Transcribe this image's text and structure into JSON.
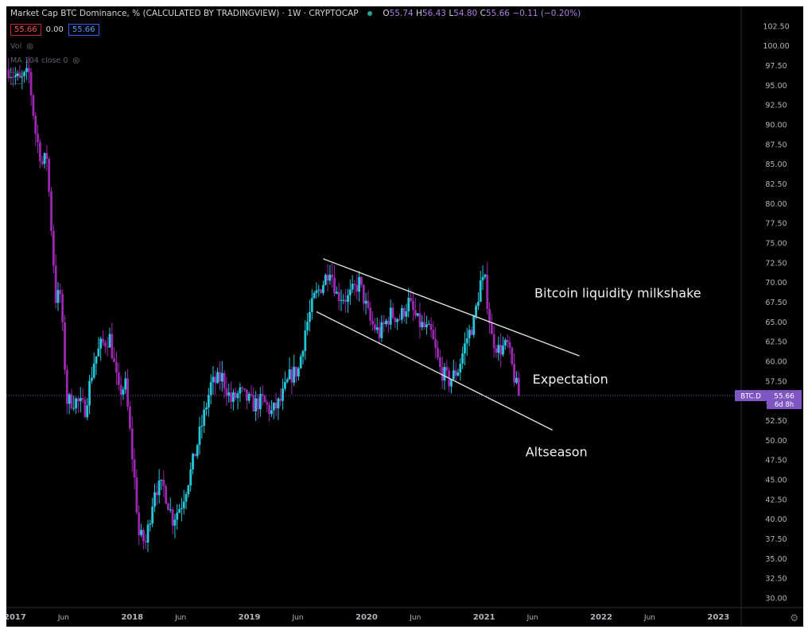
{
  "header": {
    "title": "Market Cap BTC Dominance, % (CALCULATED BY TRADINGVIEW) · 1W · CRYPTOCAP",
    "ohlc": {
      "o_label": "O",
      "o": "55.74",
      "h_label": "H",
      "h": "56.43",
      "l_label": "L",
      "l": "54.80",
      "c_label": "C",
      "c": "55.66",
      "change": "−0.11 (−0.20%)"
    },
    "badge_last": "55.66",
    "badge_zero": "0.00",
    "badge_ma": "55.66",
    "vol_label": "Vol",
    "ma_label": "MA 104 close 0"
  },
  "price_label": {
    "symbol": "BTC.D",
    "value": "55.66",
    "countdown": "6d 8h"
  },
  "colors": {
    "up": "#26c6da",
    "down": "#9c27b0",
    "line": "#e0e0e0",
    "bg": "#000000"
  },
  "icons": {
    "eye": "eye-crossed-icon",
    "collapse": "chevron-up-icon",
    "settings": "gear-icon",
    "status": "dot-icon"
  },
  "chart_data": {
    "type": "candlestick",
    "ylim": [
      28.8,
      105.0
    ],
    "y_ticks": [
      "102.50",
      "100.00",
      "97.50",
      "95.00",
      "92.50",
      "90.00",
      "87.50",
      "85.00",
      "82.50",
      "80.00",
      "77.50",
      "75.00",
      "72.50",
      "70.00",
      "67.50",
      "65.00",
      "62.50",
      "60.00",
      "57.50",
      "55.00",
      "52.50",
      "50.00",
      "47.50",
      "45.00",
      "42.50",
      "40.00",
      "37.50",
      "35.00",
      "32.50",
      "30.00"
    ],
    "x_ticks": [
      {
        "label": "2017",
        "date": "2017-01-01"
      },
      {
        "label": "Jun",
        "date": "2017-06-01"
      },
      {
        "label": "2018",
        "date": "2018-01-01"
      },
      {
        "label": "Jun",
        "date": "2018-06-01"
      },
      {
        "label": "2019",
        "date": "2019-01-01"
      },
      {
        "label": "Jun",
        "date": "2019-06-01"
      },
      {
        "label": "2020",
        "date": "2020-01-01"
      },
      {
        "label": "Jun",
        "date": "2020-06-01"
      },
      {
        "label": "2021",
        "date": "2021-01-01"
      },
      {
        "label": "Jun",
        "date": "2021-06-01"
      },
      {
        "label": "2022",
        "date": "2022-01-01"
      },
      {
        "label": "Jun",
        "date": "2022-06-01"
      },
      {
        "label": "2023",
        "date": "2023-01-01"
      }
    ],
    "x_start_date": "2016-12-05",
    "x_end_date": "2023-03-13",
    "close_path": [
      [
        "2016-12-12",
        97.0
      ],
      [
        "2017-01-16",
        95.5
      ],
      [
        "2017-02-13",
        96.5
      ],
      [
        "2017-03-06",
        89.0
      ],
      [
        "2017-03-27",
        85.0
      ],
      [
        "2017-04-10",
        86.0
      ],
      [
        "2017-05-08",
        68.0
      ],
      [
        "2017-05-22",
        68.5
      ],
      [
        "2017-06-12",
        55.0
      ],
      [
        "2017-07-10",
        55.0
      ],
      [
        "2017-08-07",
        54.0
      ],
      [
        "2017-09-04",
        60.0
      ],
      [
        "2017-09-25",
        62.0
      ],
      [
        "2017-10-23",
        63.0
      ],
      [
        "2017-11-20",
        56.0
      ],
      [
        "2017-12-11",
        57.0
      ],
      [
        "2018-01-08",
        45.0
      ],
      [
        "2018-01-22",
        38.0
      ],
      [
        "2018-02-12",
        37.0
      ],
      [
        "2018-03-12",
        44.0
      ],
      [
        "2018-04-09",
        44.0
      ],
      [
        "2018-05-07",
        40.0
      ],
      [
        "2018-06-04",
        42.0
      ],
      [
        "2018-07-02",
        46.0
      ],
      [
        "2018-08-06",
        52.0
      ],
      [
        "2018-09-03",
        57.0
      ],
      [
        "2018-10-08",
        58.0
      ],
      [
        "2018-11-05",
        55.0
      ],
      [
        "2018-12-03",
        56.0
      ],
      [
        "2019-01-14",
        54.5
      ],
      [
        "2019-02-11",
        55.0
      ],
      [
        "2019-03-11",
        53.5
      ],
      [
        "2019-04-08",
        55.0
      ],
      [
        "2019-05-06",
        58.0
      ],
      [
        "2019-06-03",
        59.0
      ],
      [
        "2019-06-24",
        64.0
      ],
      [
        "2019-07-22",
        68.0
      ],
      [
        "2019-08-19",
        70.0
      ],
      [
        "2019-09-09",
        72.0
      ],
      [
        "2019-09-30",
        68.5
      ],
      [
        "2019-11-04",
        68.0
      ],
      [
        "2019-12-09",
        70.0
      ],
      [
        "2020-01-13",
        65.0
      ],
      [
        "2020-02-10",
        63.5
      ],
      [
        "2020-03-16",
        66.0
      ],
      [
        "2020-04-13",
        65.5
      ],
      [
        "2020-05-11",
        67.5
      ],
      [
        "2020-06-08",
        65.0
      ],
      [
        "2020-07-20",
        63.5
      ],
      [
        "2020-08-17",
        59.0
      ],
      [
        "2020-09-14",
        57.5
      ],
      [
        "2020-10-12",
        59.0
      ],
      [
        "2020-11-09",
        63.0
      ],
      [
        "2020-11-30",
        65.0
      ],
      [
        "2020-12-21",
        70.0
      ],
      [
        "2021-01-04",
        70.0
      ],
      [
        "2021-01-25",
        63.0
      ],
      [
        "2021-02-15",
        61.5
      ],
      [
        "2021-03-15",
        62.0
      ],
      [
        "2021-04-05",
        58.0
      ],
      [
        "2021-04-19",
        55.66
      ]
    ],
    "annotations": [
      {
        "text": "Bitcoin liquidity milkshake",
        "date": "2021-06-07",
        "y": 68.1
      },
      {
        "text": "Expectation",
        "date": "2021-06-01",
        "y": 57.2
      },
      {
        "text": "Altseason",
        "date": "2021-05-10",
        "y": 48.0
      }
    ],
    "trend_lines": [
      {
        "from": [
          "2019-08-19",
          73.0
        ],
        "to": [
          "2021-10-25",
          60.7
        ]
      },
      {
        "from": [
          "2019-07-29",
          66.3
        ],
        "to": [
          "2021-08-02",
          51.3
        ]
      }
    ],
    "last_price_line": 55.66
  }
}
